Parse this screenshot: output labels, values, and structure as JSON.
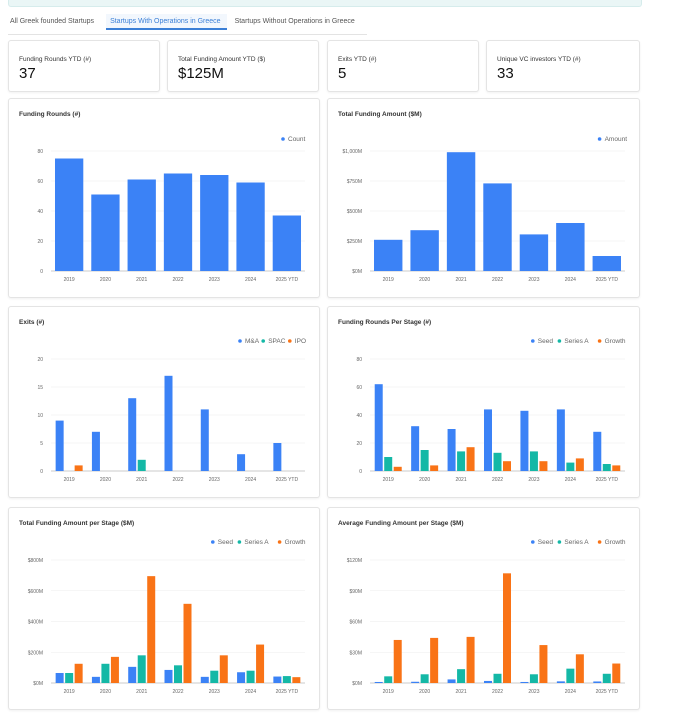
{
  "tabs": [
    {
      "label": "All Greek founded Startups",
      "active": false
    },
    {
      "label": "Startups With Operations in Greece",
      "active": true
    },
    {
      "label": "Startups Without Operations in Greece",
      "active": false
    }
  ],
  "kpis": [
    {
      "label": "Funding Rounds YTD (#)",
      "value": "37"
    },
    {
      "label": "Total Funding Amount YTD ($)",
      "value": "$125M"
    },
    {
      "label": "Exits YTD (#)",
      "value": "5"
    },
    {
      "label": "Unique VC investors YTD (#)",
      "value": "33"
    }
  ],
  "colors": {
    "blue": "#3b82f6",
    "teal": "#14b8a6",
    "orange": "#f97316"
  },
  "chart_data": [
    {
      "id": "funding-rounds",
      "type": "bar",
      "title": "Funding Rounds (#)",
      "categories": [
        "2019",
        "2020",
        "2021",
        "2022",
        "2023",
        "2024",
        "2025 YTD"
      ],
      "series": [
        {
          "name": "Count",
          "color": "#3b82f6",
          "values": [
            75,
            51,
            61,
            65,
            64,
            59,
            37
          ]
        }
      ],
      "yticks": [
        0,
        20,
        40,
        60,
        80
      ],
      "ytick_labels": [
        "0",
        "20",
        "40",
        "60",
        "80"
      ],
      "ylim": [
        0,
        80
      ],
      "legend": "top-right"
    },
    {
      "id": "total-funding-amount",
      "type": "bar",
      "title": "Total Funding Amount ($M)",
      "categories": [
        "2019",
        "2020",
        "2021",
        "2022",
        "2023",
        "2024",
        "2025 YTD"
      ],
      "series": [
        {
          "name": "Amount",
          "color": "#3b82f6",
          "values": [
            260,
            340,
            990,
            730,
            305,
            400,
            125
          ]
        }
      ],
      "yticks": [
        0,
        250,
        500,
        750,
        1000
      ],
      "ytick_labels": [
        "$0M",
        "$250M",
        "$500M",
        "$750M",
        "$1,000M"
      ],
      "ylim": [
        0,
        1000
      ],
      "legend": "top-right"
    },
    {
      "id": "exits",
      "type": "bar",
      "title": "Exits (#)",
      "categories": [
        "2019",
        "2020",
        "2021",
        "2022",
        "2023",
        "2024",
        "2025 YTD"
      ],
      "series": [
        {
          "name": "M&A",
          "color": "#3b82f6",
          "values": [
            9,
            7,
            13,
            17,
            11,
            3,
            5
          ]
        },
        {
          "name": "SPAC",
          "color": "#14b8a6",
          "values": [
            0,
            0,
            2,
            0,
            0,
            0,
            0
          ]
        },
        {
          "name": "IPO",
          "color": "#f97316",
          "values": [
            1,
            0,
            0,
            0,
            0,
            0,
            0
          ]
        }
      ],
      "yticks": [
        0,
        5,
        10,
        15,
        20
      ],
      "ytick_labels": [
        "0",
        "5",
        "10",
        "15",
        "20"
      ],
      "ylim": [
        0,
        20
      ],
      "legend": "top-right"
    },
    {
      "id": "funding-rounds-per-stage",
      "type": "bar",
      "title": "Funding Rounds Per Stage (#)",
      "categories": [
        "2019",
        "2020",
        "2021",
        "2022",
        "2023",
        "2024",
        "2025 YTD"
      ],
      "series": [
        {
          "name": "Seed",
          "color": "#3b82f6",
          "values": [
            62,
            32,
            30,
            44,
            43,
            44,
            28
          ]
        },
        {
          "name": "Series A",
          "color": "#14b8a6",
          "values": [
            10,
            15,
            14,
            13,
            14,
            6,
            5
          ]
        },
        {
          "name": "Growth",
          "color": "#f97316",
          "values": [
            3,
            4,
            17,
            7,
            7,
            9,
            4
          ]
        }
      ],
      "yticks": [
        0,
        20,
        40,
        60,
        80
      ],
      "ytick_labels": [
        "0",
        "20",
        "40",
        "60",
        "80"
      ],
      "ylim": [
        0,
        80
      ],
      "legend": "top-right"
    },
    {
      "id": "total-funding-per-stage",
      "type": "bar",
      "title": "Total Funding Amount per Stage ($M)",
      "categories": [
        "2019",
        "2020",
        "2021",
        "2022",
        "2023",
        "2024",
        "2025 YTD"
      ],
      "series": [
        {
          "name": "Seed",
          "color": "#3b82f6",
          "values": [
            65,
            40,
            105,
            85,
            40,
            70,
            42
          ]
        },
        {
          "name": "Series A",
          "color": "#14b8a6",
          "values": [
            65,
            125,
            180,
            115,
            80,
            80,
            45
          ]
        },
        {
          "name": "Growth",
          "color": "#f97316",
          "values": [
            125,
            170,
            695,
            515,
            180,
            250,
            38
          ]
        }
      ],
      "yticks": [
        0,
        200,
        400,
        600,
        800
      ],
      "ytick_labels": [
        "$0M",
        "$200M",
        "$400M",
        "$600M",
        "$800M"
      ],
      "ylim": [
        0,
        800
      ],
      "legend": "top-right"
    },
    {
      "id": "average-funding-per-stage",
      "type": "bar",
      "title": "Average Funding Amount per Stage ($M)",
      "categories": [
        "2019",
        "2020",
        "2021",
        "2022",
        "2023",
        "2024",
        "2025 YTD"
      ],
      "series": [
        {
          "name": "Seed",
          "color": "#3b82f6",
          "values": [
            1,
            1.2,
            3.5,
            2,
            1,
            1.6,
            1.5
          ]
        },
        {
          "name": "Series A",
          "color": "#14b8a6",
          "values": [
            6.5,
            8.5,
            13.5,
            9,
            8.5,
            14,
            9
          ]
        },
        {
          "name": "Growth",
          "color": "#f97316",
          "values": [
            42,
            44,
            45,
            107,
            37,
            28,
            19
          ]
        }
      ],
      "yticks": [
        0,
        30,
        60,
        90,
        120
      ],
      "ytick_labels": [
        "$0M",
        "$30M",
        "$60M",
        "$90M",
        "$120M"
      ],
      "ylim": [
        0,
        120
      ],
      "legend": "top-right"
    }
  ]
}
